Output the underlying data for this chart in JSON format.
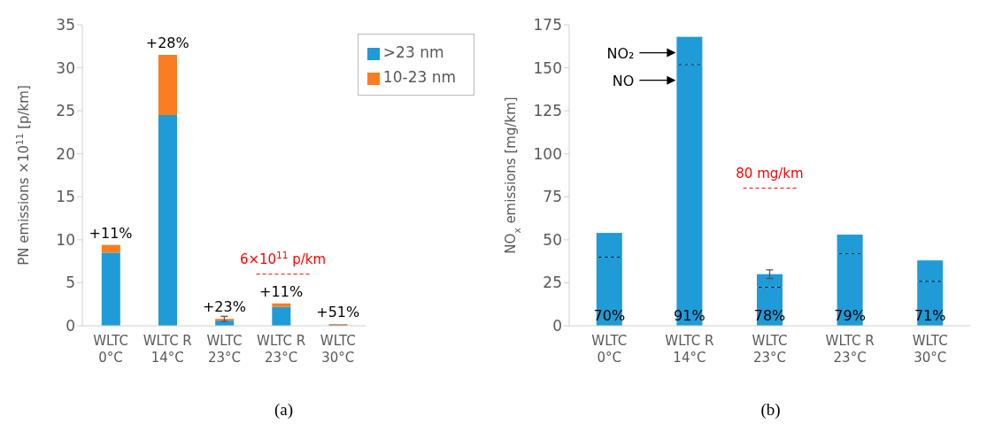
{
  "chart_data": [
    {
      "type": "bar",
      "title": "(a)",
      "ylabel": "PN emissions ×10$^{11}$ [p/km]",
      "stacked": true,
      "categories": [
        "WLTC\n0°C",
        "WLTC R\n14°C",
        "WLTC\n23°C",
        "WLTC R\n23°C",
        "WLTC\n30°C"
      ],
      "series": [
        {
          "name": ">23 nm",
          "color": "#1f9bd7",
          "values": [
            8.5,
            24.5,
            0.6,
            2.2,
            0.1
          ]
        },
        {
          "name": "10-23 nm",
          "color": "#fa7d20",
          "values": [
            0.9,
            7.0,
            0.2,
            0.4,
            0.1
          ],
          "errors": [
            null,
            null,
            0.3,
            null,
            null
          ]
        }
      ],
      "ylim": [
        0,
        35
      ],
      "yticks": [
        0,
        5,
        10,
        15,
        20,
        25,
        30,
        35
      ],
      "grid": false,
      "legend": "top right",
      "ref_lines": [
        {
          "axis": "y",
          "value": 6,
          "label": "6×10$^{11}$ p/km",
          "color": "#ff0000",
          "line_style": "dashed"
        }
      ],
      "annotations": [
        {
          "text": "+11%",
          "x": "WLTC\n0°C",
          "y": 9.4
        },
        {
          "text": "+28%",
          "x": "WLTC R\n14°C",
          "y": 31.5
        },
        {
          "text": "+23%",
          "x": "WLTC\n23°C",
          "y": 0.8
        },
        {
          "text": "+11%",
          "x": "WLTC R\n23°C",
          "y": 2.6
        },
        {
          "text": "+51%",
          "x": "WLTC\n30°C",
          "y": 0.2
        }
      ]
    },
    {
      "type": "bar",
      "title": "(b)",
      "ylabel": "NO$_{x}$ emissions  [mg/km]",
      "stacked": true,
      "categories": [
        "WLTC\n0°C",
        "WLTC R\n14°C",
        "WLTC\n23°C",
        "WLTC R\n23°C",
        "WLTC\n30°C"
      ],
      "series": [
        {
          "name": "NO",
          "color": "#1f9bd7",
          "line_style": "dashed",
          "values": [
            40,
            152,
            22.5,
            42,
            26
          ]
        },
        {
          "name": "NO₂",
          "color": "#1f9bd7",
          "values": [
            14,
            16,
            7.5,
            11,
            12
          ],
          "errors": [
            null,
            null,
            2.5,
            null,
            null
          ]
        }
      ],
      "ylim": [
        0,
        175
      ],
      "yticks": [
        0,
        25,
        50,
        75,
        100,
        125,
        150,
        175
      ],
      "grid": false,
      "legend": false,
      "ref_lines": [
        {
          "axis": "y",
          "value": 80,
          "label": "80 mg/km",
          "color": "#ff0000",
          "line_style": "dashed"
        }
      ],
      "annotations": [
        {
          "text": "70%",
          "x": "WLTC\n0°C",
          "y": 0
        },
        {
          "text": "91%",
          "x": "WLTC R\n14°C",
          "y": 0
        },
        {
          "text": "78%",
          "x": "WLTC\n23°C",
          "y": 0
        },
        {
          "text": "79%",
          "x": "WLTC R\n23°C",
          "y": 0
        },
        {
          "text": "71%",
          "x": "WLTC\n30°C",
          "y": 0
        }
      ]
    }
  ]
}
